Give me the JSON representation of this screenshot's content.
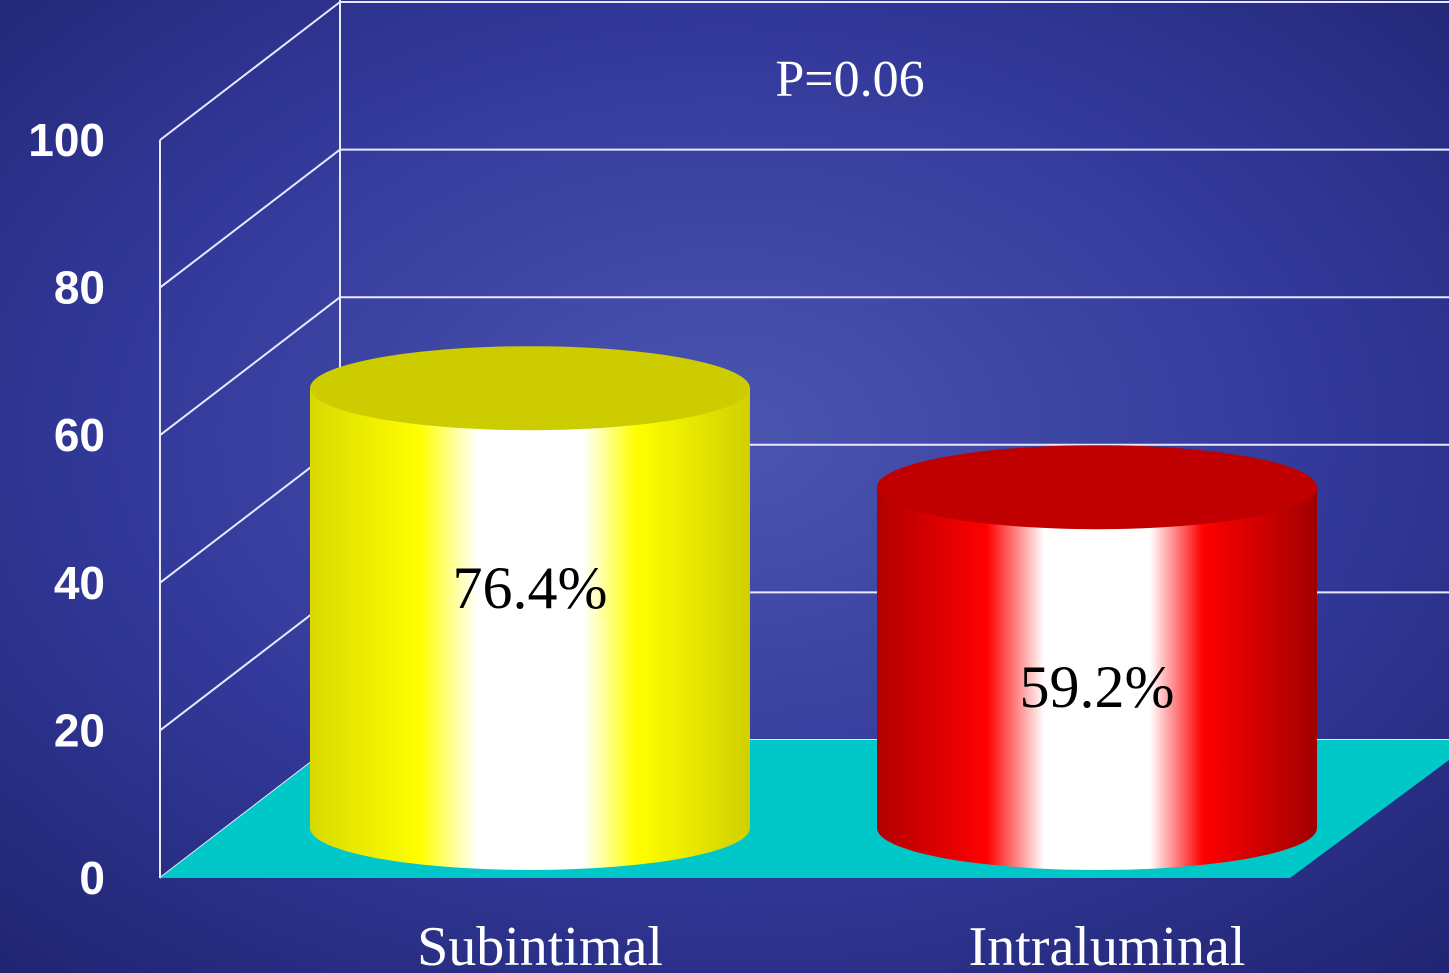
{
  "chart_data": {
    "type": "bar",
    "style": "3d-cylinder",
    "categories": [
      "Subintimal",
      "Intraluminal"
    ],
    "values": [
      76.4,
      59.2
    ],
    "data_labels": [
      "76.4%",
      "59.2%"
    ],
    "colors": [
      "#ffff00",
      "#ff0000"
    ],
    "floor_color": "#00c8c8",
    "ylim": [
      0,
      100
    ],
    "yticks": [
      0,
      20,
      40,
      60,
      80,
      100
    ],
    "title": "",
    "xlabel": "",
    "ylabel": "",
    "annotation": "P=0.06",
    "grid": true,
    "legend": "none"
  }
}
